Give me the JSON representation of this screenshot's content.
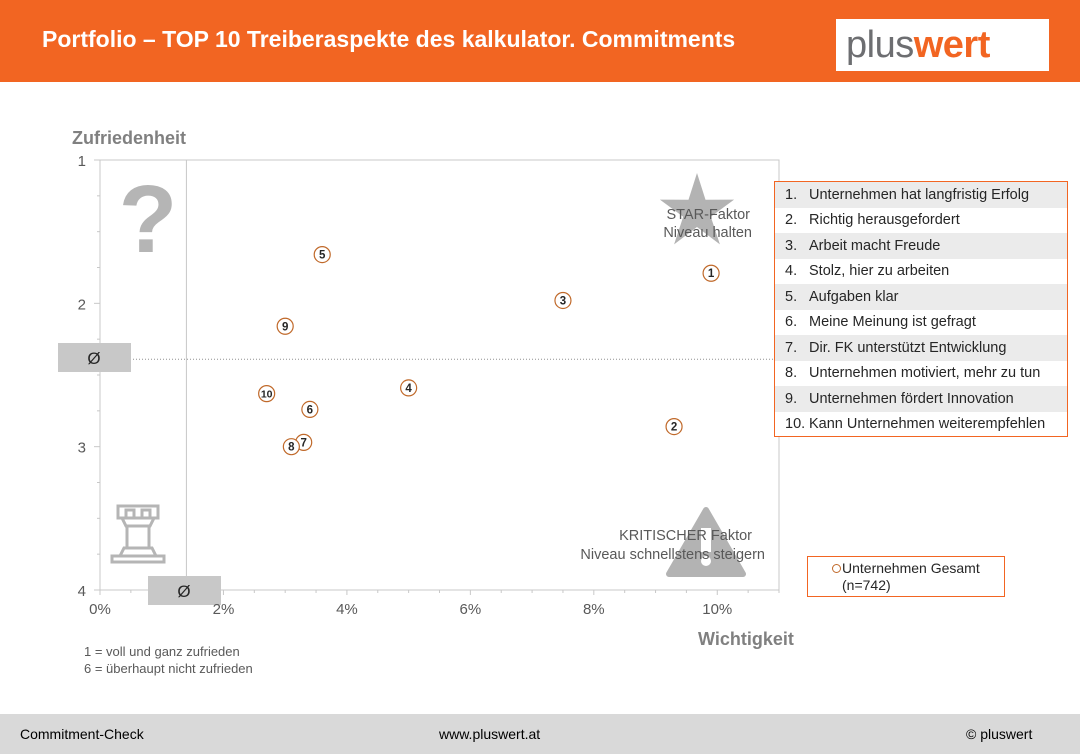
{
  "header": {
    "title": "Portfolio – TOP 10 Treiberaspekte des kalkulator. Commitments",
    "logo_part1": "plus",
    "logo_part2": "wert",
    "bg_color": "#f26522"
  },
  "chart_data": {
    "type": "scatter",
    "ylabel": "Zufriedenheit",
    "xlabel": "Wichtigkeit",
    "xlim": [
      0,
      11
    ],
    "ylim": [
      1,
      4
    ],
    "y_reversed": true,
    "x_ticks": [
      "0%",
      "2%",
      "4%",
      "6%",
      "8%",
      "10%"
    ],
    "x_tick_values": [
      0,
      2,
      4,
      6,
      8,
      10
    ],
    "y_ticks": [
      "1",
      "2",
      "3",
      "4"
    ],
    "y_tick_values": [
      1,
      2,
      3,
      4
    ],
    "avg_x": 1.4,
    "avg_y": 2.39,
    "avg_symbol": "Ø",
    "marker_color": "#c0692a",
    "series": [
      {
        "name": "Unternehmen Gesamt",
        "points": [
          {
            "label": "1",
            "x": 9.9,
            "y": 1.79
          },
          {
            "label": "2",
            "x": 9.3,
            "y": 2.86
          },
          {
            "label": "3",
            "x": 7.5,
            "y": 1.98
          },
          {
            "label": "4",
            "x": 5.0,
            "y": 2.59
          },
          {
            "label": "5",
            "x": 3.6,
            "y": 1.66
          },
          {
            "label": "6",
            "x": 3.4,
            "y": 2.74
          },
          {
            "label": "7",
            "x": 3.3,
            "y": 2.97
          },
          {
            "label": "8",
            "x": 3.1,
            "y": 3.0
          },
          {
            "label": "9",
            "x": 3.0,
            "y": 2.16
          },
          {
            "label": "10",
            "x": 2.7,
            "y": 2.63
          }
        ]
      }
    ],
    "quadrant_labels": {
      "star_line1": "STAR-Faktor",
      "star_line2": "Niveau halten",
      "critical_line1": "KRITISCHER Faktor",
      "critical_line2": "Niveau schnellstens steigern",
      "question_mark": "?"
    },
    "scale_note_1": "1 = voll und ganz zufrieden",
    "scale_note_2": "6 = überhaupt nicht zufrieden"
  },
  "legend": {
    "items": [
      {
        "num": "1.",
        "label": "Unternehmen hat langfristig Erfolg"
      },
      {
        "num": "2.",
        "label": "Richtig herausgefordert"
      },
      {
        "num": "3.",
        "label": "Arbeit macht Freude"
      },
      {
        "num": "4.",
        "label": "Stolz, hier zu arbeiten"
      },
      {
        "num": "5.",
        "label": "Aufgaben klar"
      },
      {
        "num": "6.",
        "label": "Meine Meinung ist gefragt"
      },
      {
        "num": "7.",
        "label": "Dir. FK unterstützt Entwicklung"
      },
      {
        "num": "8.",
        "label": "Unternehmen motiviert, mehr zu tun"
      },
      {
        "num": "9.",
        "label": "Unternehmen fördert Innovation"
      },
      {
        "num": "10.",
        "label": "Kann Unternehmen weiterempfehlen"
      }
    ]
  },
  "series_legend": {
    "name": "Unternehmen Gesamt",
    "n": "(n=742)"
  },
  "footer": {
    "left": "Commitment-Check",
    "center": "www.pluswert.at",
    "right": "© pluswert"
  }
}
